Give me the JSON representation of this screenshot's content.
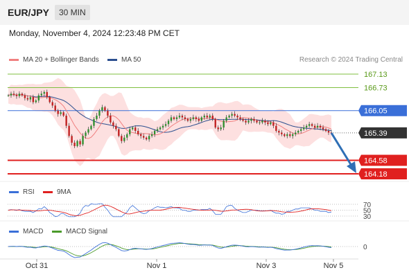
{
  "header": {
    "pair": "EUR/JPY",
    "timeframe": "30 MIN",
    "timestamp": "Monday, November 4, 2024 12:23:48 PM CET"
  },
  "legend": {
    "ma20_label": "MA 20 + Bollinger Bands",
    "ma50_label": "MA 50",
    "credit": "Research © 2024 Trading Central",
    "rsi_label": "RSI",
    "rsi_ma_label": "9MA",
    "macd_label": "MACD",
    "macd_signal_label": "MACD Signal"
  },
  "colors": {
    "ma20": "#f08080",
    "ma50": "#2c4f8f",
    "bollinger_fill": "#fde0e0",
    "resistance": "#7fbf3f",
    "pivot": "#3a6fd8",
    "support": "#e0201f",
    "current_price": "#333333",
    "candle_up": "#2f8f2f",
    "candle_down": "#c02020",
    "arrow": "#2f6fb5",
    "rsi_line": "#3a6fd8",
    "rsi_ma": "#e0201f",
    "macd_line": "#3a6fd8",
    "macd_signal": "#4a9a2a"
  },
  "chart_data": {
    "type": "line",
    "title": "EUR/JPY 30 MIN",
    "x_ticks": [
      "Oct 31",
      "Nov 1",
      "Nov 3",
      "Nov 5"
    ],
    "price_levels": [
      {
        "name": "resistance",
        "value": 167.13,
        "label": "167.13"
      },
      {
        "name": "resistance",
        "value": 166.73,
        "label": "166.73"
      },
      {
        "name": "pivot",
        "value": 166.05,
        "label": "166.05"
      },
      {
        "name": "current",
        "value": 165.39,
        "label": "165.39"
      },
      {
        "name": "support",
        "value": 164.58,
        "label": "164.58"
      },
      {
        "name": "support",
        "value": 164.18,
        "label": "164.18"
      }
    ],
    "price_series": {
      "name": "EUR/JPY close",
      "values": [
        166.5,
        166.55,
        166.52,
        166.48,
        166.55,
        166.5,
        166.42,
        166.38,
        166.45,
        166.3,
        166.35,
        166.5,
        166.55,
        166.6,
        166.45,
        166.3,
        166.2,
        166.05,
        165.95,
        166.0,
        165.9,
        165.6,
        165.3,
        165.1,
        165.0,
        165.15,
        165.05,
        165.3,
        165.4,
        165.5,
        165.6,
        165.8,
        165.9,
        166.05,
        166.15,
        166.05,
        165.9,
        165.7,
        165.6,
        165.5,
        165.3,
        165.15,
        165.25,
        165.35,
        165.5,
        165.55,
        165.45,
        165.35,
        165.3,
        165.25,
        165.2,
        165.3,
        165.35,
        165.45,
        165.5,
        165.55,
        165.6,
        165.65,
        165.75,
        165.85,
        165.8,
        165.85,
        165.9,
        165.85,
        165.8,
        165.75,
        165.8,
        165.85,
        165.8,
        165.75,
        165.85,
        165.9,
        165.85,
        165.9,
        165.8,
        165.55,
        165.5,
        165.55,
        165.75,
        165.85,
        165.9,
        165.95,
        165.9,
        165.85,
        165.8,
        165.75,
        165.7,
        165.75,
        165.8,
        165.75,
        165.7,
        165.7,
        165.75,
        165.7,
        165.65,
        165.7,
        165.6,
        165.45,
        165.4,
        165.35,
        165.3,
        165.35,
        165.3,
        165.35,
        165.4,
        165.45,
        165.5,
        165.55,
        165.6,
        165.65,
        165.6,
        165.55,
        165.6,
        165.55,
        165.5,
        165.45,
        165.4,
        165.39
      ]
    },
    "forecast": {
      "from": 165.39,
      "to": 164.18
    },
    "rsi": {
      "levels": [
        70,
        50,
        30
      ]
    },
    "macd": {
      "levels": [
        0
      ]
    }
  }
}
